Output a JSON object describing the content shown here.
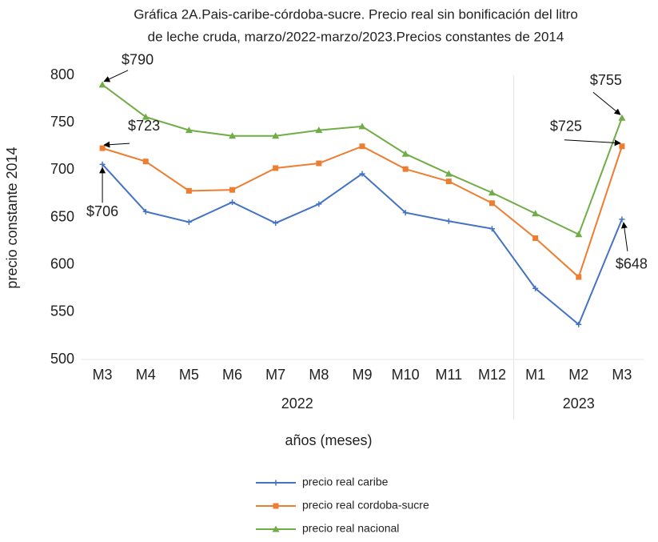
{
  "chart_data": {
    "type": "line",
    "title": [
      "Gráfica 2A.Pais-caribe-córdoba-sucre. Precio real sin bonificación del litro",
      "de leche cruda, marzo/2022-marzo/2023.Precios constantes de 2014"
    ],
    "y_label": "precio constante 2014",
    "x_label": "años (meses)",
    "categories": [
      "M3",
      "M4",
      "M5",
      "M6",
      "M7",
      "M8",
      "M9",
      "M10",
      "M11",
      "M12",
      "M1",
      "M2",
      "M3"
    ],
    "x_groups": [
      {
        "name": "2022",
        "start": 0,
        "end": 9
      },
      {
        "name": "2023",
        "start": 10,
        "end": 12
      }
    ],
    "ylim": [
      500,
      800
    ],
    "yticks": [
      500,
      550,
      600,
      650,
      700,
      750,
      800
    ],
    "grid": false,
    "legend": "bottom",
    "series": [
      {
        "name": "precio real caribe",
        "color": "#4472c4",
        "marker": "plus",
        "values": [
          706,
          656,
          645,
          666,
          644,
          664,
          696,
          655,
          646,
          638,
          575,
          537,
          648
        ],
        "value_labels": [
          "$706",
          null,
          null,
          null,
          null,
          null,
          null,
          null,
          null,
          null,
          null,
          null,
          "$648"
        ]
      },
      {
        "name": "precio real cordoba-sucre",
        "color": "#ed7d31",
        "marker": "square",
        "values": [
          723,
          709,
          678,
          679,
          702,
          707,
          725,
          701,
          688,
          665,
          628,
          587,
          725
        ],
        "value_labels": [
          "$723",
          null,
          null,
          null,
          null,
          null,
          null,
          null,
          null,
          null,
          null,
          null,
          "$725"
        ]
      },
      {
        "name": "precio real nacional",
        "color": "#70ad47",
        "marker": "triangle",
        "values": [
          790,
          756,
          742,
          736,
          736,
          742,
          746,
          717,
          696,
          676,
          654,
          632,
          755
        ],
        "value_labels": [
          "$790",
          null,
          null,
          null,
          null,
          null,
          null,
          null,
          null,
          null,
          null,
          null,
          "$755"
        ]
      }
    ]
  }
}
